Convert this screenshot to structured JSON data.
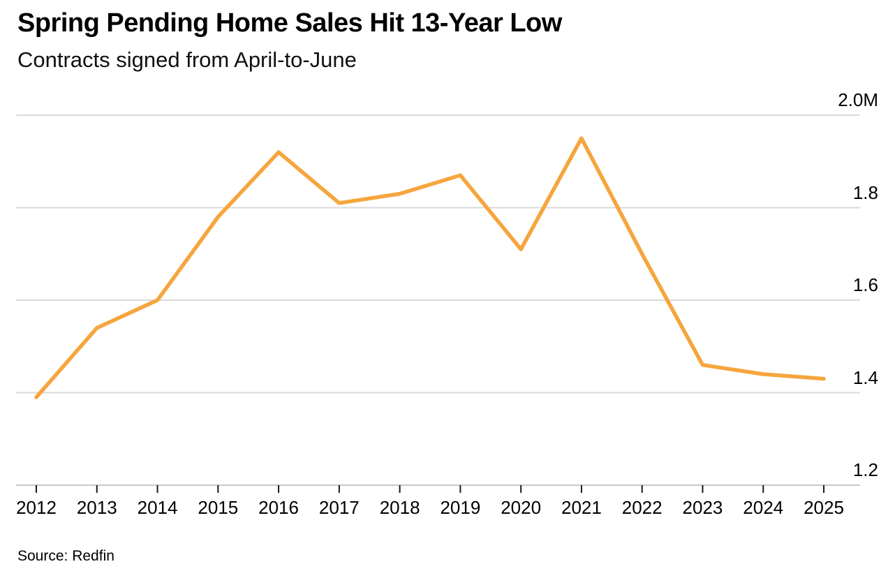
{
  "header": {
    "title": "Spring Pending Home Sales Hit 13-Year Low",
    "subtitle": "Contracts signed from April-to-June"
  },
  "footer": {
    "source": "Source: Redfin"
  },
  "chart_data": {
    "type": "line",
    "title": "Spring Pending Home Sales Hit 13-Year Low",
    "subtitle": "Contracts signed from April-to-June",
    "categories": [
      "2012",
      "2013",
      "2014",
      "2015",
      "2016",
      "2017",
      "2018",
      "2019",
      "2020",
      "2021",
      "2022",
      "2023",
      "2024",
      "2025"
    ],
    "values": [
      1.39,
      1.54,
      1.6,
      1.78,
      1.92,
      1.81,
      1.83,
      1.87,
      1.71,
      1.95,
      1.7,
      1.46,
      1.44,
      1.43
    ],
    "unit": "millions of homes",
    "xlabel": "",
    "ylabel": "",
    "ylim": [
      1.2,
      2.0
    ],
    "yticks": [
      {
        "value": 2.0,
        "label": "2.0M"
      },
      {
        "value": 1.8,
        "label": "1.8"
      },
      {
        "value": 1.6,
        "label": "1.6"
      },
      {
        "value": 1.4,
        "label": "1.4"
      },
      {
        "value": 1.2,
        "label": "1.2"
      }
    ],
    "grid": true,
    "legend": "none",
    "y_axis_side": "right",
    "colors": {
      "line": "#F6A53E",
      "gridline": "#dadada",
      "axis_line": "#c9c9c9",
      "tick": "#1a1a1a",
      "text": "#000000"
    }
  }
}
